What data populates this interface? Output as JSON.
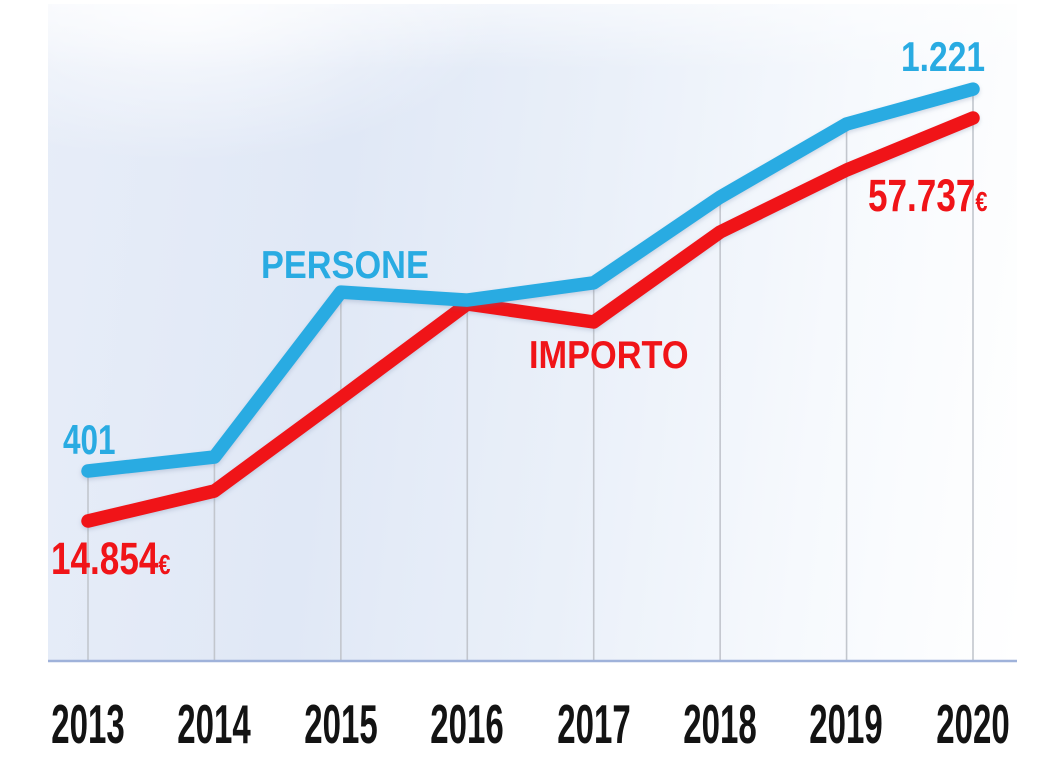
{
  "chart_data": {
    "type": "line",
    "categories": [
      "2013",
      "2014",
      "2015",
      "2016",
      "2017",
      "2018",
      "2019",
      "2020"
    ],
    "series": [
      {
        "name": "PERSONE",
        "color": "#29abe2",
        "values": [
          401,
          431,
          785,
          768,
          805,
          989,
          1146,
          1221
        ],
        "ylim": [
          -7,
          1262
        ]
      },
      {
        "name": "IMPORTO",
        "color": "#f01418",
        "values": [
          14854,
          18050,
          27940,
          37950,
          36030,
          45610,
          52200,
          57737
        ],
        "ylim": [
          -43,
          62845
        ]
      }
    ],
    "title": "",
    "xlabel": "",
    "ylabel": "",
    "grid": "vertical-per-category",
    "legend": "inline-labels-on-lines",
    "annotations": {
      "persone_start": "401",
      "persone_end": "1.221",
      "importo_start_value": "14.854",
      "importo_start_currency": "€",
      "importo_end_value": "57.737",
      "importo_end_currency": "€"
    },
    "colors": {
      "persone_blue": "#29abe2",
      "importo_red": "#f01418",
      "gridline": "#c2c6cd",
      "axis_line": "#9fb2da",
      "year_text": "#131313"
    }
  }
}
